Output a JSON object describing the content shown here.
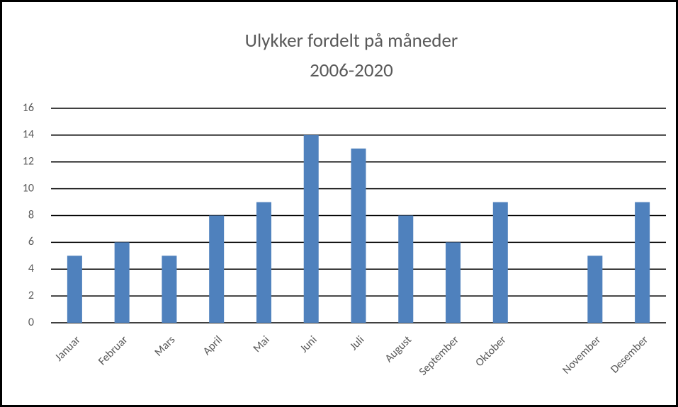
{
  "chart_data": {
    "type": "bar",
    "title": "Ulykker fordelt på måneder",
    "subtitle": "2006-2020",
    "categories": [
      "Januar",
      "Februar",
      "Mars",
      "April",
      "Mai",
      "Juni",
      "Juli",
      "August",
      "September",
      "Oktober",
      null,
      "November",
      "Desember"
    ],
    "values": [
      5,
      6,
      5,
      8,
      9,
      14,
      13,
      8,
      6,
      9,
      null,
      5,
      9
    ],
    "color": "#4f81bd",
    "ylim": [
      0,
      16
    ],
    "yticks": [
      0,
      2,
      4,
      6,
      8,
      10,
      12,
      14,
      16
    ],
    "grid": true
  }
}
